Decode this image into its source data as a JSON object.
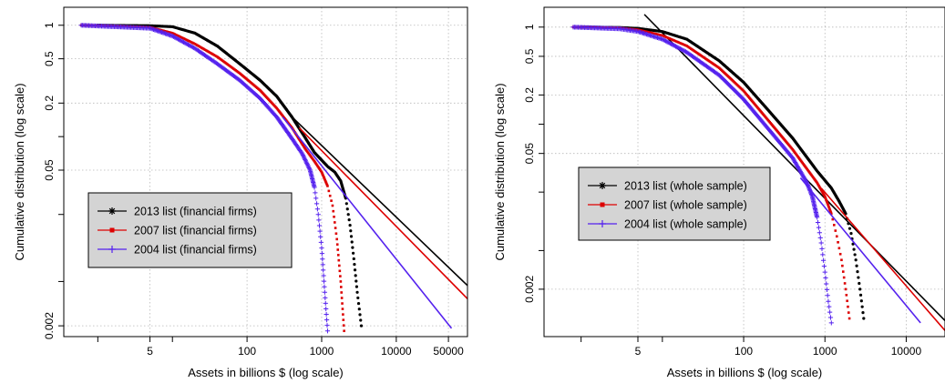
{
  "chart_data": [
    {
      "type": "line",
      "xlabel": "Assets in billions $ (log scale)",
      "ylabel": "Cumulative distribution (log scale)",
      "xscale": "log",
      "yscale": "log",
      "xlim": [
        0.35,
        90000
      ],
      "ylim": [
        0.0016,
        1.45
      ],
      "xticks": [
        5,
        100,
        1000,
        10000,
        50000
      ],
      "xtick_labels": [
        "5",
        "100",
        "1000",
        "10000",
        "50000"
      ],
      "yticks": [
        0.002,
        0.05,
        0.2,
        0.5,
        1
      ],
      "ytick_labels": [
        "0.002",
        "0.05",
        "0.2",
        "0.5",
        "1"
      ],
      "grid": true,
      "legend": "center-left",
      "series": [
        {
          "name": "2013 list (financial firms)",
          "color": "#000000",
          "marker": "asterisk",
          "x": [
            1,
            5,
            10,
            20,
            40,
            80,
            150,
            250,
            400,
            600,
            800,
            1200,
            1500,
            1800,
            2100,
            2400,
            2700,
            3000,
            3400
          ],
          "y": [
            1,
            0.99,
            0.97,
            0.85,
            0.65,
            0.45,
            0.32,
            0.23,
            0.15,
            0.098,
            0.072,
            0.054,
            0.048,
            0.04,
            0.028,
            0.016,
            0.008,
            0.004,
            0.002
          ],
          "fit": {
            "x": [
              400,
              90000
            ],
            "y": [
              0.15,
              0.0046
            ]
          }
        },
        {
          "name": "2007 list (financial firms)",
          "color": "#dd0000",
          "marker": "square",
          "x": [
            0.6,
            5,
            10,
            20,
            40,
            80,
            150,
            250,
            400,
            600,
            800,
            1000,
            1200,
            1400,
            1600,
            1800,
            2000
          ],
          "y": [
            1,
            0.96,
            0.85,
            0.68,
            0.52,
            0.37,
            0.26,
            0.18,
            0.12,
            0.078,
            0.06,
            0.048,
            0.036,
            0.024,
            0.012,
            0.005,
            0.0018
          ],
          "fit": {
            "x": [
              500,
              90000
            ],
            "y": [
              0.12,
              0.0035
            ]
          }
        },
        {
          "name": "2004 list (financial firms)",
          "color": "#5522ee",
          "marker": "plus",
          "x": [
            0.6,
            5,
            10,
            20,
            40,
            80,
            150,
            250,
            400,
            550,
            700,
            800,
            900,
            1000,
            1100,
            1200
          ],
          "y": [
            1,
            0.94,
            0.8,
            0.62,
            0.45,
            0.32,
            0.22,
            0.15,
            0.096,
            0.07,
            0.05,
            0.035,
            0.02,
            0.01,
            0.004,
            0.0018
          ],
          "fit": {
            "x": [
              300,
              55000
            ],
            "y": [
              0.15,
              0.0019
            ]
          }
        }
      ]
    },
    {
      "type": "line",
      "xlabel": "Assets in billions $ (log scale)",
      "ylabel": "Cumulative distribution (log scale)",
      "xscale": "log",
      "yscale": "log",
      "xlim": [
        0.35,
        30000
      ],
      "ylim": [
        0.00065,
        1.6
      ],
      "xticks": [
        5,
        100,
        1000,
        10000
      ],
      "xtick_labels": [
        "5",
        "100",
        "1000",
        "10000"
      ],
      "yticks": [
        0.002,
        0.05,
        0.2,
        0.5,
        1
      ],
      "ytick_labels": [
        "0.002",
        "0.05",
        "0.2",
        "0.5",
        "1"
      ],
      "grid": true,
      "legend": "center-left",
      "series": [
        {
          "name": "2013 list (whole sample)",
          "color": "#000000",
          "marker": "asterisk",
          "x": [
            1,
            3,
            5,
            10,
            20,
            50,
            100,
            200,
            400,
            800,
            1200,
            1500,
            1800,
            2100,
            2400,
            2700,
            3000
          ],
          "y": [
            1,
            0.99,
            0.97,
            0.9,
            0.75,
            0.45,
            0.27,
            0.14,
            0.072,
            0.033,
            0.022,
            0.016,
            0.012,
            0.0075,
            0.004,
            0.002,
            0.001
          ],
          "fit": {
            "x": [
              6,
              30000
            ],
            "y": [
              1.35,
              0.00095
            ]
          }
        },
        {
          "name": "2007 list (whole sample)",
          "color": "#dd0000",
          "marker": "square",
          "x": [
            0.8,
            3,
            5,
            10,
            20,
            50,
            100,
            200,
            400,
            800,
            1000,
            1200,
            1400,
            1600,
            1800,
            2000
          ],
          "y": [
            1,
            0.98,
            0.94,
            0.82,
            0.64,
            0.38,
            0.22,
            0.11,
            0.055,
            0.025,
            0.018,
            0.012,
            0.007,
            0.004,
            0.002,
            0.001
          ],
          "fit": {
            "x": [
              900,
              30000
            ],
            "y": [
              0.022,
              0.00075
            ]
          }
        },
        {
          "name": "2004 list (whole sample)",
          "color": "#5522ee",
          "marker": "plus",
          "x": [
            0.8,
            3,
            5,
            10,
            20,
            50,
            100,
            200,
            400,
            600,
            700,
            800,
            900,
            1000,
            1100,
            1200
          ],
          "y": [
            1,
            0.96,
            0.9,
            0.75,
            0.55,
            0.32,
            0.18,
            0.09,
            0.045,
            0.025,
            0.018,
            0.011,
            0.006,
            0.003,
            0.0015,
            0.0009
          ],
          "fit": {
            "x": [
              500,
              15000
            ],
            "y": [
              0.028,
              0.0009
            ]
          }
        }
      ]
    }
  ]
}
